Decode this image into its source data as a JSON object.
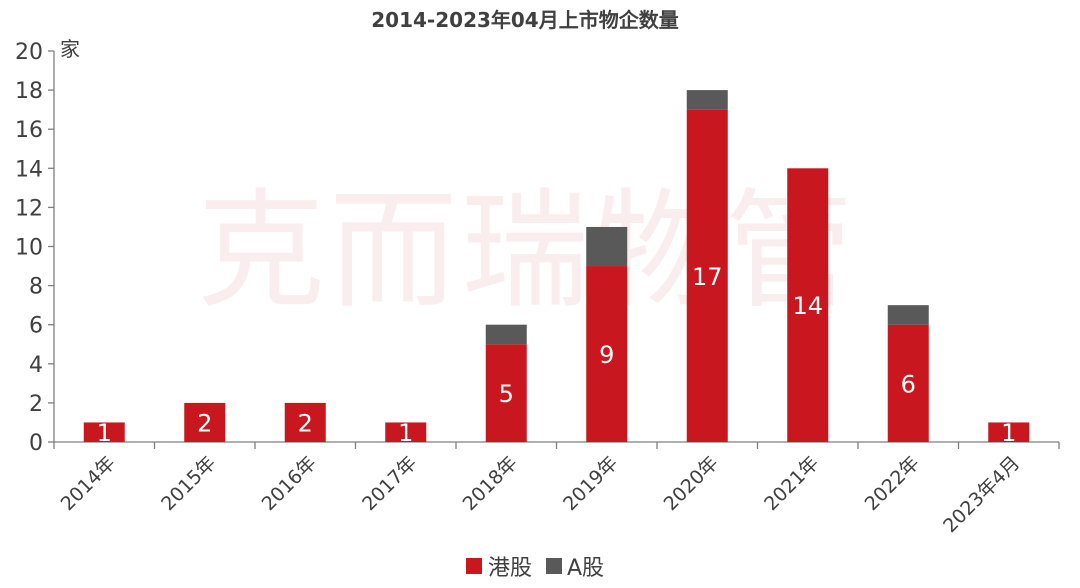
{
  "watermark": "克而瑞物管",
  "colors": {
    "hk": "#c8171e",
    "a": "#595959",
    "axis": "#7f7f7f",
    "text": "#404040"
  },
  "chart_data": {
    "type": "bar",
    "stacked": true,
    "title": "2014-2023年04月上市物企数量",
    "ylabel": "家",
    "xlabel": "",
    "ylim": [
      0,
      20
    ],
    "yticks": [
      "0",
      "2",
      "4",
      "6",
      "8",
      "10",
      "12",
      "14",
      "16",
      "18",
      "20"
    ],
    "grid": false,
    "legend_position": "bottom",
    "categories": [
      "2014年",
      "2015年",
      "2016年",
      "2017年",
      "2018年",
      "2019年",
      "2020年",
      "2021年",
      "2022年",
      "2023年4月"
    ],
    "series": [
      {
        "name": "港股",
        "values": [
          1,
          2,
          2,
          1,
          5,
          9,
          17,
          14,
          6,
          1
        ],
        "labels": [
          "1",
          "2",
          "2",
          "1",
          "5",
          "9",
          "17",
          "14",
          "6",
          "1"
        ]
      },
      {
        "name": "A股",
        "values": [
          0,
          0,
          0,
          0,
          1,
          2,
          1,
          0,
          1,
          0
        ]
      }
    ]
  }
}
